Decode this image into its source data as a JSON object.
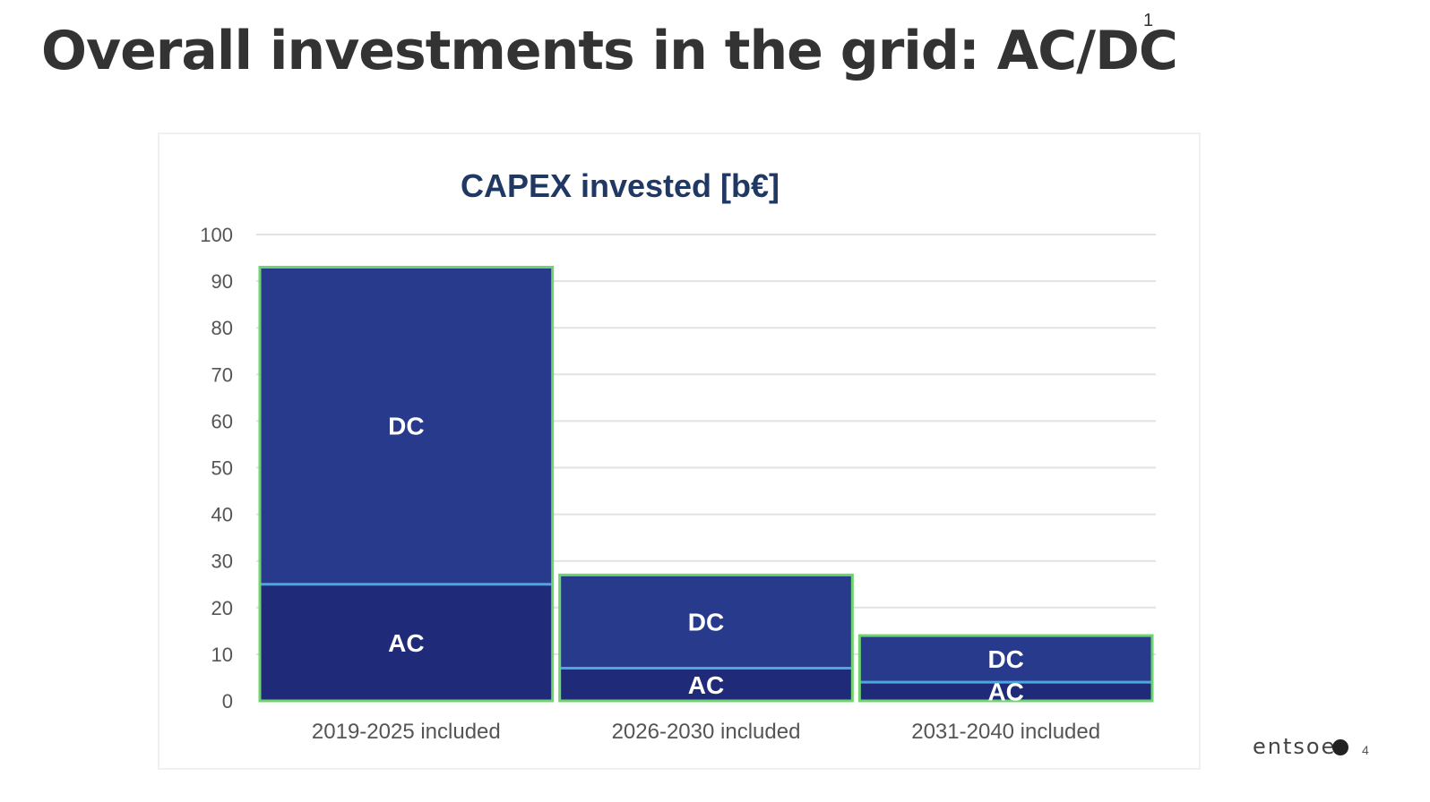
{
  "slide": {
    "title": "Overall investments in the grid: AC/DC",
    "footnote_marker": "1",
    "logo_text": "entsoe",
    "page_number": "4"
  },
  "colors": {
    "dc": "#283a8c",
    "ac": "#1f2a78",
    "bar_border": "#6fd36f",
    "divider": "#4aa8df",
    "bar_label": "#ffffff",
    "title": "#333333",
    "chart_title": "#1f3864",
    "tick_label": "#555555",
    "grid": "#e2e2e2"
  },
  "chart_data": {
    "type": "bar",
    "stacked": true,
    "title": "CAPEX invested [b€]",
    "xlabel": "",
    "ylabel": "",
    "categories": [
      "2019-2025 included",
      "2026-2030 included",
      "2031-2040 included"
    ],
    "series": [
      {
        "name": "AC",
        "values": [
          25,
          7,
          4
        ]
      },
      {
        "name": "DC",
        "values": [
          68,
          20,
          10
        ]
      }
    ],
    "ylim": [
      0,
      100
    ],
    "yticks": [
      0,
      10,
      20,
      30,
      40,
      50,
      60,
      70,
      80,
      90,
      100
    ],
    "grid": true,
    "legend": "none"
  }
}
